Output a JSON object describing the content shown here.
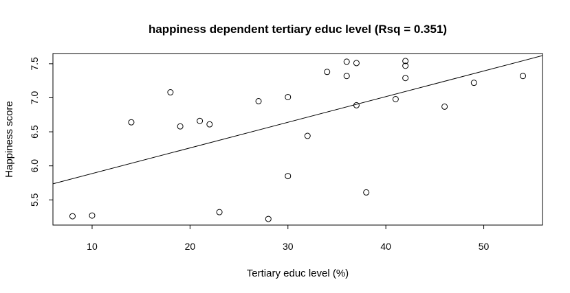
{
  "chart_data": {
    "type": "scatter",
    "title": "happiness dependent tertiary educ level (Rsq = 0.351)",
    "xlabel": "Tertiary educ level (%)",
    "ylabel": "Happiness score",
    "xlim": [
      6,
      56
    ],
    "ylim": [
      5.13,
      7.65
    ],
    "x_ticks": [
      10,
      20,
      30,
      40,
      50
    ],
    "y_ticks": [
      5.5,
      6.0,
      6.5,
      7.0,
      7.5
    ],
    "x_tick_labels": [
      "10",
      "20",
      "30",
      "40",
      "50"
    ],
    "y_tick_labels": [
      "5.5",
      "6.0",
      "6.5",
      "7.0",
      "7.5"
    ],
    "grid": false,
    "legend": "none",
    "points": [
      {
        "x": 8,
        "y": 5.26
      },
      {
        "x": 10,
        "y": 5.27
      },
      {
        "x": 14,
        "y": 6.64
      },
      {
        "x": 18,
        "y": 7.08
      },
      {
        "x": 19,
        "y": 6.58
      },
      {
        "x": 21,
        "y": 6.66
      },
      {
        "x": 22,
        "y": 6.61
      },
      {
        "x": 23,
        "y": 5.32
      },
      {
        "x": 27,
        "y": 6.95
      },
      {
        "x": 28,
        "y": 5.22
      },
      {
        "x": 30,
        "y": 7.01
      },
      {
        "x": 30,
        "y": 5.85
      },
      {
        "x": 32,
        "y": 6.44
      },
      {
        "x": 34,
        "y": 7.38
      },
      {
        "x": 36,
        "y": 7.53
      },
      {
        "x": 36,
        "y": 7.32
      },
      {
        "x": 37,
        "y": 7.51
      },
      {
        "x": 37,
        "y": 6.89
      },
      {
        "x": 38,
        "y": 5.61
      },
      {
        "x": 41,
        "y": 6.98
      },
      {
        "x": 42,
        "y": 7.54
      },
      {
        "x": 42,
        "y": 7.47
      },
      {
        "x": 42,
        "y": 7.29
      },
      {
        "x": 46,
        "y": 6.87
      },
      {
        "x": 49,
        "y": 7.22
      },
      {
        "x": 54,
        "y": 7.32
      }
    ],
    "regression_line": {
      "intercept": 5.51,
      "slope": 0.03767
    }
  }
}
